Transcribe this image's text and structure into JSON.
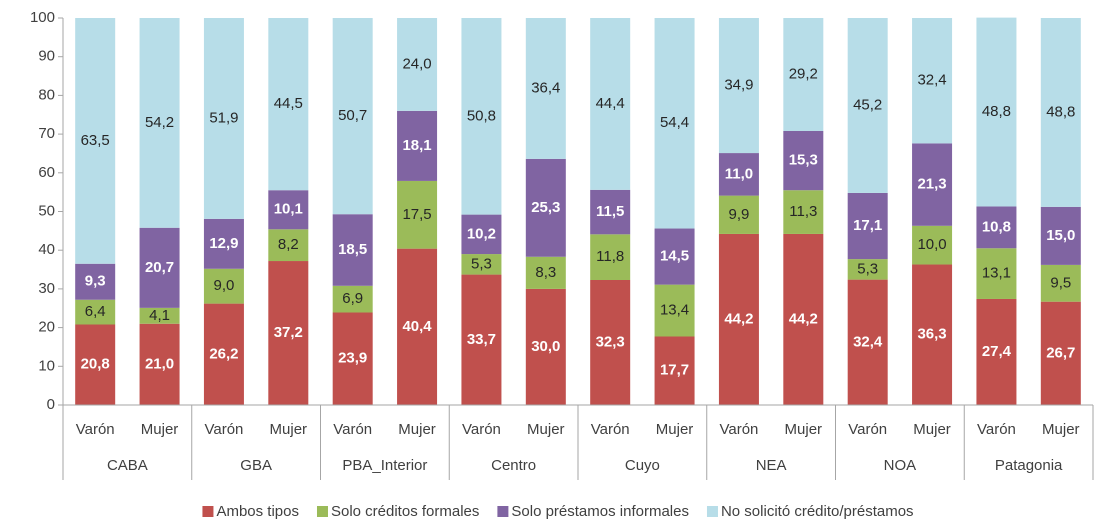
{
  "chart_data": {
    "type": "stacked_bar",
    "categories": [
      "Varón",
      "Mujer",
      "Varón",
      "Mujer",
      "Varón",
      "Mujer",
      "Varón",
      "Mujer",
      "Varón",
      "Mujer",
      "Varón",
      "Mujer",
      "Varón",
      "Mujer",
      "Varón",
      "Mujer"
    ],
    "groups": [
      "CABA",
      "GBA",
      "PBA_Interior",
      "Centro",
      "Cuyo",
      "NEA",
      "NOA",
      "Patagonia"
    ],
    "series": [
      {
        "name": "Ambos tipos",
        "color": "#c0504d",
        "label_color": "#ffffff",
        "values": [
          20.8,
          21.0,
          26.2,
          37.2,
          23.9,
          40.4,
          33.7,
          30.0,
          32.3,
          17.7,
          44.2,
          44.2,
          32.4,
          36.3,
          27.4,
          26.7
        ],
        "value_labels": [
          "20,8",
          "21,0",
          "26,2",
          "37,2",
          "23,9",
          "40,4",
          "33,7",
          "30,0",
          "32,3",
          "17,7",
          "44,2",
          "44,2",
          "32,4",
          "36,3",
          "27,4",
          "26,7"
        ]
      },
      {
        "name": "Solo créditos formales",
        "color": "#9bbb59",
        "label_color": "#262626",
        "values": [
          6.4,
          4.1,
          9.0,
          8.2,
          6.9,
          17.5,
          5.3,
          8.3,
          11.8,
          13.4,
          9.9,
          11.3,
          5.3,
          10.0,
          13.1,
          9.5
        ],
        "value_labels": [
          "6,4",
          "4,1",
          "9,0",
          "8,2",
          "6,9",
          "17,5",
          "5,3",
          "8,3",
          "11,8",
          "13,4",
          "9,9",
          "11,3",
          "5,3",
          "10,0",
          "13,1",
          "9,5"
        ]
      },
      {
        "name": "Solo préstamos informales",
        "color": "#8064a2",
        "label_color": "#ffffff",
        "values": [
          9.3,
          20.7,
          12.9,
          10.1,
          18.5,
          18.1,
          10.2,
          25.3,
          11.5,
          14.5,
          11.0,
          15.3,
          17.1,
          21.3,
          10.8,
          15.0
        ],
        "value_labels": [
          "9,3",
          "20,7",
          "12,9",
          "10,1",
          "18,5",
          "18,1",
          "10,2",
          "25,3",
          "11,5",
          "14,5",
          "11,0",
          "15,3",
          "17,1",
          "21,3",
          "10,8",
          "15,0"
        ]
      },
      {
        "name": "No solicitó crédito/préstamos",
        "color": "#b7dde8",
        "label_color": "#262626",
        "values": [
          63.5,
          54.2,
          51.9,
          44.5,
          50.7,
          24.0,
          50.8,
          36.4,
          44.4,
          54.4,
          34.9,
          29.2,
          45.2,
          32.4,
          48.8,
          48.8
        ],
        "value_labels": [
          "63,5",
          "54,2",
          "51,9",
          "44,5",
          "50,7",
          "24,0",
          "50,8",
          "36,4",
          "44,4",
          "54,4",
          "34,9",
          "29,2",
          "45,2",
          "32,4",
          "48,8",
          "48,8"
        ]
      }
    ],
    "ylim": [
      0,
      100
    ],
    "yticks": [
      0,
      10,
      20,
      30,
      40,
      50,
      60,
      70,
      80,
      90,
      100
    ],
    "grid": false,
    "legend": "bottom"
  }
}
